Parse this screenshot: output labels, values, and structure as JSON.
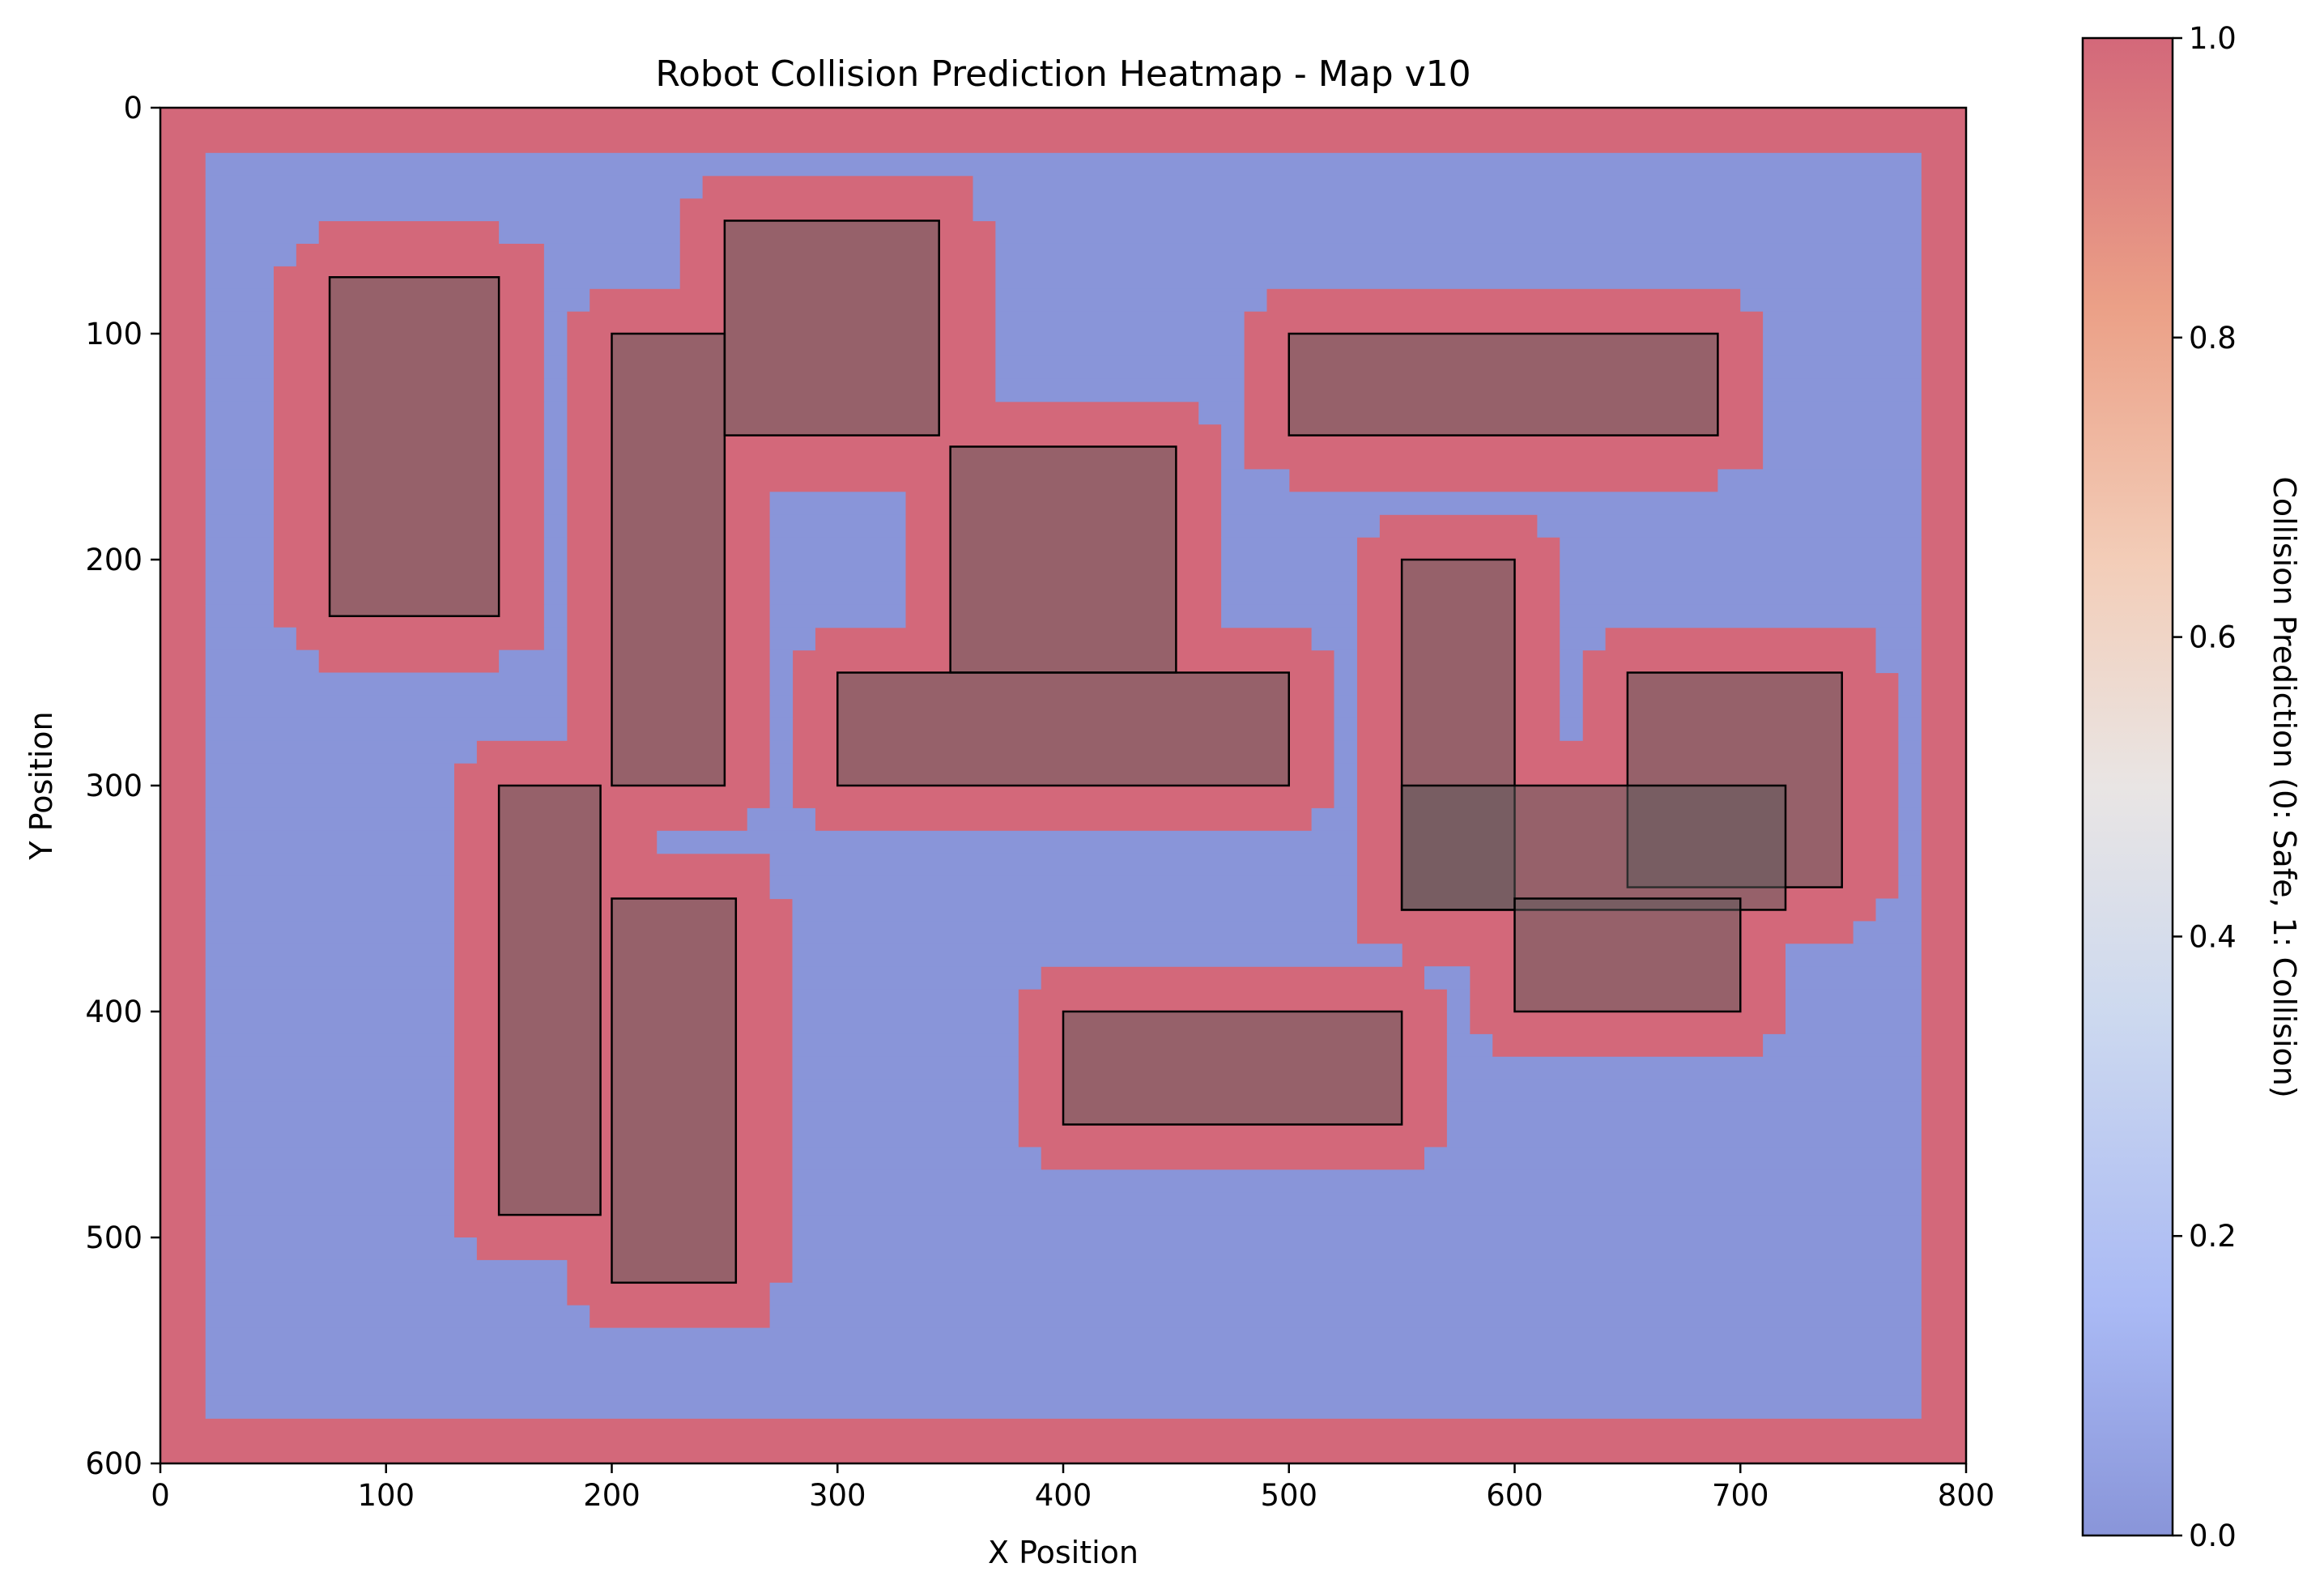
{
  "chart_data": {
    "type": "heatmap",
    "title": "Robot Collision Prediction Heatmap - Map v10",
    "xlabel": "X Position",
    "ylabel": "Y Position",
    "xlim": [
      0,
      800
    ],
    "ylim": [
      600,
      0
    ],
    "y_axis_inverted": true,
    "x_ticks": [
      "0",
      "100",
      "200",
      "300",
      "400",
      "500",
      "600",
      "700",
      "800"
    ],
    "y_ticks": [
      "0",
      "100",
      "200",
      "300",
      "400",
      "500",
      "600"
    ],
    "cell_size": 10,
    "safety_margin": 20,
    "colormap": "coolwarm",
    "color_safe": "#8995d9",
    "color_collision": "#d3687a",
    "obstacle_fill": "#97797b",
    "colorbar": {
      "label": "Collision Prediction (0: Safe, 1: Collision)",
      "range": [
        0,
        1
      ],
      "ticks": [
        "0.0",
        "0.2",
        "0.4",
        "0.6",
        "0.8",
        "1.0"
      ]
    },
    "obstacles": [
      {
        "x": [
          75,
          150
        ],
        "y": [
          75,
          225
        ]
      },
      {
        "x": [
          200,
          250
        ],
        "y": [
          100,
          300
        ]
      },
      {
        "x": [
          250,
          345
        ],
        "y": [
          50,
          145
        ]
      },
      {
        "x": [
          350,
          450
        ],
        "y": [
          150,
          250
        ]
      },
      {
        "x": [
          300,
          500
        ],
        "y": [
          250,
          300
        ]
      },
      {
        "x": [
          500,
          690
        ],
        "y": [
          100,
          145
        ]
      },
      {
        "x": [
          150,
          195
        ],
        "y": [
          300,
          490
        ]
      },
      {
        "x": [
          200,
          255
        ],
        "y": [
          350,
          520
        ]
      },
      {
        "x": [
          550,
          600
        ],
        "y": [
          200,
          355
        ]
      },
      {
        "x": [
          650,
          745
        ],
        "y": [
          250,
          345
        ]
      },
      {
        "x": [
          550,
          720
        ],
        "y": [
          300,
          355
        ]
      },
      {
        "x": [
          600,
          700
        ],
        "y": [
          350,
          400
        ]
      },
      {
        "x": [
          400,
          550
        ],
        "y": [
          400,
          450
        ]
      }
    ]
  }
}
